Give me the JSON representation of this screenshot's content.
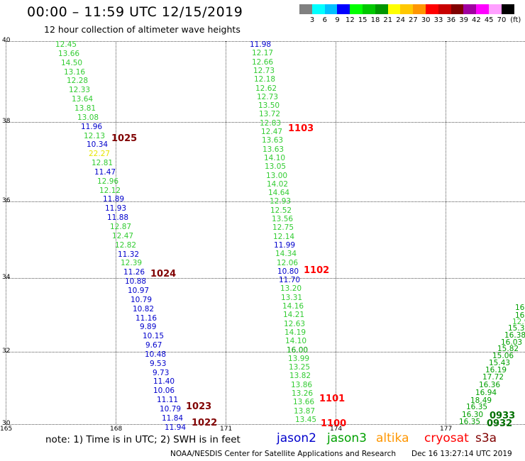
{
  "header": {
    "title": "00:00 – 11:59 UTC 12/15/2019",
    "subtitle": "12 hour collection of altimeter wave heights"
  },
  "colorbar": {
    "colors": [
      "#808080",
      "#00ffff",
      "#00c0ff",
      "#0000ff",
      "#00ff00",
      "#00c800",
      "#009600",
      "#ffff00",
      "#ffc800",
      "#ff9600",
      "#ff0000",
      "#c80000",
      "#800000",
      "#a000a0",
      "#ff00ff",
      "#ffa0ff",
      "#000000"
    ],
    "labels": [
      "3",
      "6",
      "9",
      "12",
      "15",
      "18",
      "21",
      "24",
      "27",
      "30",
      "33",
      "36",
      "39",
      "42",
      "45",
      "70",
      "(ft)"
    ]
  },
  "axes": {
    "y_labels": [
      "40",
      "38",
      "36",
      "34",
      "32",
      "30"
    ],
    "x_labels": [
      "165",
      "168",
      "171",
      "174",
      "177"
    ]
  },
  "passes": [
    {
      "satellite": "jason2",
      "values": [
        {
          "v": "12.45",
          "c": "jason3"
        },
        {
          "v": "13.66",
          "c": "jason3"
        },
        {
          "v": "14.50",
          "c": "jason3"
        },
        {
          "v": "13.16",
          "c": "jason3"
        },
        {
          "v": "12.28",
          "c": "jason3"
        },
        {
          "v": "12.33",
          "c": "jason3"
        },
        {
          "v": "13.64",
          "c": "jason3"
        },
        {
          "v": "13.81",
          "c": "jason3"
        },
        {
          "v": "13.08",
          "c": "jason3"
        },
        {
          "v": "11.96",
          "c": "jason2"
        },
        {
          "v": "12.13",
          "c": "jason3"
        },
        {
          "v": "10.34",
          "c": "jason2"
        },
        {
          "v": "22.27",
          "c": "yellow"
        },
        {
          "v": "12.81",
          "c": "jason3"
        },
        {
          "v": "11.47",
          "c": "jason2"
        },
        {
          "v": "12.96",
          "c": "jason3"
        },
        {
          "v": "12.12",
          "c": "jason3"
        },
        {
          "v": "11.89",
          "c": "jason2"
        },
        {
          "v": "11.93",
          "c": "jason2"
        },
        {
          "v": "11.88",
          "c": "jason2"
        },
        {
          "v": "12.87",
          "c": "jason3"
        },
        {
          "v": "12.47",
          "c": "jason3"
        },
        {
          "v": "12.82",
          "c": "jason3"
        },
        {
          "v": "11.32",
          "c": "jason2"
        },
        {
          "v": "12.39",
          "c": "jason3"
        },
        {
          "v": "11.26",
          "c": "jason2"
        },
        {
          "v": "10.88",
          "c": "jason2"
        },
        {
          "v": "10.97",
          "c": "jason2"
        },
        {
          "v": "10.79",
          "c": "jason2"
        },
        {
          "v": "10.82",
          "c": "jason2"
        },
        {
          "v": "11.16",
          "c": "jason2"
        },
        {
          "v": "9.89",
          "c": "jason2"
        },
        {
          "v": "10.15",
          "c": "jason2"
        },
        {
          "v": "9.67",
          "c": "jason2"
        },
        {
          "v": "10.48",
          "c": "jason2"
        },
        {
          "v": "9.53",
          "c": "jason2"
        },
        {
          "v": "9.73",
          "c": "jason2"
        },
        {
          "v": "11.40",
          "c": "jason2"
        },
        {
          "v": "10.06",
          "c": "jason2"
        },
        {
          "v": "11.11",
          "c": "jason2"
        },
        {
          "v": "10.79",
          "c": "jason2"
        },
        {
          "v": "11.84",
          "c": "jason2"
        },
        {
          "v": "11.94",
          "c": "jason2"
        }
      ]
    },
    {
      "satellite": "jason3",
      "values": [
        {
          "v": "11.98",
          "c": "jason2"
        },
        {
          "v": "12.17",
          "c": "jason3"
        },
        {
          "v": "12.66",
          "c": "jason3"
        },
        {
          "v": "12.73",
          "c": "jason3"
        },
        {
          "v": "12.18",
          "c": "jason3"
        },
        {
          "v": "12.62",
          "c": "jason3"
        },
        {
          "v": "12.73",
          "c": "jason3"
        },
        {
          "v": "13.50",
          "c": "jason3"
        },
        {
          "v": "13.72",
          "c": "jason3"
        },
        {
          "v": "12.83",
          "c": "jason3"
        },
        {
          "v": "12.47",
          "c": "jason3"
        },
        {
          "v": "13.63",
          "c": "jason3"
        },
        {
          "v": "13.63",
          "c": "jason3"
        },
        {
          "v": "14.10",
          "c": "jason3"
        },
        {
          "v": "13.05",
          "c": "jason3"
        },
        {
          "v": "13.00",
          "c": "jason3"
        },
        {
          "v": "14.02",
          "c": "jason3"
        },
        {
          "v": "14.64",
          "c": "jason3"
        },
        {
          "v": "12.93",
          "c": "jason3"
        },
        {
          "v": "12.52",
          "c": "jason3"
        },
        {
          "v": "13.56",
          "c": "jason3"
        },
        {
          "v": "12.75",
          "c": "jason3"
        },
        {
          "v": "12.14",
          "c": "jason3"
        },
        {
          "v": "11.99",
          "c": "jason2"
        },
        {
          "v": "14.34",
          "c": "jason3"
        },
        {
          "v": "12.06",
          "c": "jason3"
        },
        {
          "v": "10.80",
          "c": "jason2"
        },
        {
          "v": "11.70",
          "c": "jason2"
        },
        {
          "v": "13.20",
          "c": "jason3"
        },
        {
          "v": "13.31",
          "c": "jason3"
        },
        {
          "v": "14.16",
          "c": "jason3"
        },
        {
          "v": "14.21",
          "c": "jason3"
        },
        {
          "v": "12.63",
          "c": "jason3"
        },
        {
          "v": "14.19",
          "c": "jason3"
        },
        {
          "v": "14.10",
          "c": "jason3"
        },
        {
          "v": "16.00",
          "c": "dkgreen"
        },
        {
          "v": "13.99",
          "c": "jason3"
        },
        {
          "v": "13.25",
          "c": "jason3"
        },
        {
          "v": "13.82",
          "c": "jason3"
        },
        {
          "v": "13.86",
          "c": "jason3"
        },
        {
          "v": "13.26",
          "c": "jason3"
        },
        {
          "v": "13.66",
          "c": "jason3"
        },
        {
          "v": "13.87",
          "c": "jason3"
        },
        {
          "v": "13.45",
          "c": "jason3"
        }
      ]
    },
    {
      "satellite": "s3a",
      "values": [
        {
          "v": "16.35",
          "c": "dkgreen"
        },
        {
          "v": "16.30",
          "c": "dkgreen"
        },
        {
          "v": "16.35",
          "c": "dkgreen"
        },
        {
          "v": "18.49",
          "c": "dkgreen"
        },
        {
          "v": "16.94",
          "c": "dkgreen"
        },
        {
          "v": "16.36",
          "c": "dkgreen"
        },
        {
          "v": "17.72",
          "c": "dkgreen"
        },
        {
          "v": "16.19",
          "c": "dkgreen"
        },
        {
          "v": "15.43",
          "c": "dkgreen"
        },
        {
          "v": "15.06",
          "c": "dkgreen"
        },
        {
          "v": "15.82",
          "c": "dkgreen"
        },
        {
          "v": "16.03",
          "c": "dkgreen"
        },
        {
          "v": "16.38",
          "c": "dkgreen"
        },
        {
          "v": "15.3",
          "c": "dkgreen"
        },
        {
          "v": "12.9",
          "c": "jason3"
        },
        {
          "v": "16",
          "c": "dkgreen"
        },
        {
          "v": "16",
          "c": "dkgreen"
        }
      ]
    }
  ],
  "time_labels": [
    {
      "text": "1025",
      "c": "dark"
    },
    {
      "text": "1024",
      "c": "dark"
    },
    {
      "text": "1023",
      "c": "dark"
    },
    {
      "text": "1022",
      "c": "dark"
    },
    {
      "text": "1103",
      "c": "red"
    },
    {
      "text": "1102",
      "c": "red"
    },
    {
      "text": "1101",
      "c": "red"
    },
    {
      "text": "1100",
      "c": "red"
    },
    {
      "text": "0933",
      "c": "green"
    },
    {
      "text": "0932",
      "c": "green"
    }
  ],
  "footer": {
    "note": "note: 1) Time is in UTC; 2) SWH is in feet",
    "legend": [
      {
        "label": "jason2",
        "color": "#0000cc"
      },
      {
        "label": "jason3",
        "color": "#00a000"
      },
      {
        "label": "altika",
        "color": "#ff9600"
      },
      {
        "label": "cryosat",
        "color": "#ff0000"
      },
      {
        "label": "s3a",
        "color": "#800000"
      }
    ],
    "credit": "NOAA/NESDIS Center for Satellite Applications and Research",
    "timestamp": "Dec 16 13:27:14 UTC 2019"
  }
}
